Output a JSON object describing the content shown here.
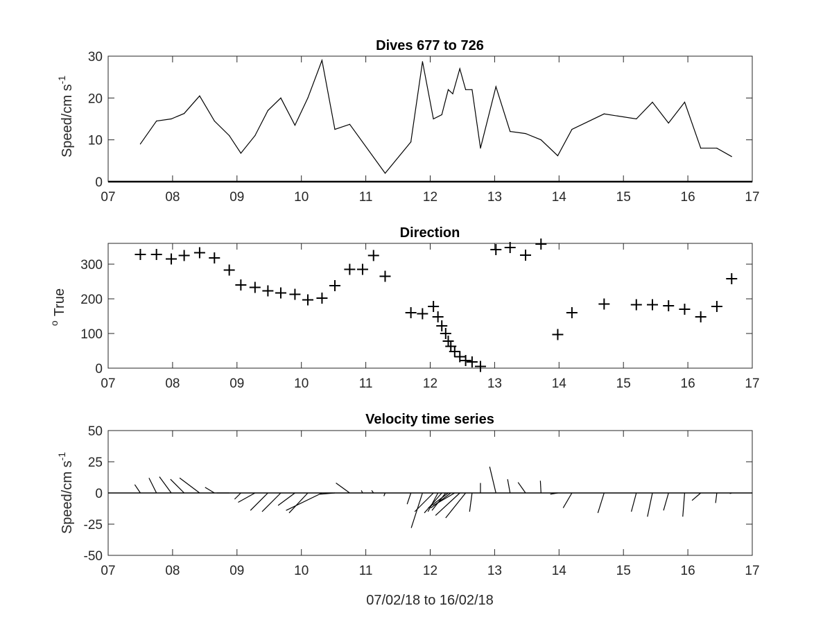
{
  "chart_data": [
    {
      "type": "line",
      "title": "Dives 677 to 726",
      "ylabel": "Speed/cm s",
      "ylabel_exponent": "-1",
      "xlim": [
        7,
        17
      ],
      "ylim": [
        0,
        30
      ],
      "xticks": [
        7,
        8,
        9,
        10,
        11,
        12,
        13,
        14,
        15,
        16,
        17
      ],
      "xtick_labels": [
        "07",
        "08",
        "09",
        "10",
        "11",
        "12",
        "13",
        "14",
        "15",
        "16",
        "17"
      ],
      "yticks": [
        0,
        10,
        20,
        30
      ],
      "ytick_labels": [
        "0",
        "10",
        "20",
        "30"
      ],
      "grid": false,
      "series": [
        {
          "x": [
            7.5,
            7.75,
            7.98,
            8.18,
            8.42,
            8.65,
            8.88,
            9.06,
            9.28,
            9.48,
            9.68,
            9.9,
            10.1,
            10.32,
            10.52,
            10.75,
            11.3,
            11.7,
            11.88,
            12.05,
            12.18,
            12.28,
            12.35,
            12.46,
            12.55,
            12.65,
            12.78,
            13.02,
            13.24,
            13.48,
            13.72,
            13.98,
            14.2,
            14.7,
            15.2,
            15.45,
            15.7,
            15.95,
            16.2,
            16.45,
            16.68
          ],
          "y": [
            9,
            14.5,
            15,
            16.3,
            20.5,
            14.5,
            11,
            6.8,
            11,
            17,
            20,
            13.5,
            20,
            29,
            12.5,
            13.7,
            2,
            9.5,
            28.7,
            15,
            16,
            22,
            21,
            27,
            22,
            22,
            8,
            22.7,
            12,
            11.5,
            10,
            6.2,
            12.5,
            16.2,
            15,
            19,
            14,
            19,
            8,
            8,
            6
          ]
        }
      ]
    },
    {
      "type": "scatter",
      "title": "Direction",
      "ylabel": "True",
      "ylabel_prefix": "o",
      "xlim": [
        7,
        17
      ],
      "ylim": [
        0,
        360
      ],
      "xticks": [
        7,
        8,
        9,
        10,
        11,
        12,
        13,
        14,
        15,
        16,
        17
      ],
      "xtick_labels": [
        "07",
        "08",
        "09",
        "10",
        "11",
        "12",
        "13",
        "14",
        "15",
        "16",
        "17"
      ],
      "yticks": [
        0,
        100,
        200,
        300
      ],
      "ytick_labels": [
        "0",
        "100",
        "200",
        "300"
      ],
      "grid": false,
      "marker": "+",
      "series": [
        {
          "x": [
            7.5,
            7.75,
            7.98,
            8.18,
            8.42,
            8.65,
            8.88,
            9.06,
            9.28,
            9.48,
            9.68,
            9.9,
            10.1,
            10.32,
            10.52,
            10.75,
            10.95,
            11.12,
            11.3,
            11.7,
            11.88,
            12.05,
            12.12,
            12.18,
            12.24,
            12.28,
            12.32,
            12.38,
            12.46,
            12.55,
            12.65,
            12.78,
            13.02,
            13.24,
            13.48,
            13.72,
            13.98,
            14.2,
            14.7,
            15.2,
            15.45,
            15.7,
            15.95,
            16.2,
            16.45,
            16.68
          ],
          "y": [
            328,
            328,
            315,
            325,
            333,
            318,
            283,
            240,
            233,
            223,
            217,
            213,
            197,
            202,
            238,
            285,
            285,
            325,
            265,
            160,
            157,
            178,
            148,
            122,
            100,
            78,
            63,
            48,
            33,
            22,
            18,
            5,
            342,
            348,
            326,
            358,
            97,
            160,
            185,
            183,
            183,
            180,
            170,
            148,
            178,
            258
          ]
        }
      ]
    },
    {
      "type": "quiver",
      "title": "Velocity time series",
      "ylabel": "Speed/cm s",
      "ylabel_exponent": "-1",
      "xlabel": "07/02/18 to 16/02/18",
      "xlim": [
        7,
        17
      ],
      "ylim": [
        -50,
        50
      ],
      "xticks": [
        7,
        8,
        9,
        10,
        11,
        12,
        13,
        14,
        15,
        16,
        17
      ],
      "xtick_labels": [
        "07",
        "08",
        "09",
        "10",
        "11",
        "12",
        "13",
        "14",
        "15",
        "16",
        "17"
      ],
      "yticks": [
        -50,
        -25,
        0,
        25,
        50
      ],
      "ytick_labels": [
        "-50",
        "-25",
        "0",
        "25",
        "50"
      ],
      "grid": false,
      "vectors": {
        "t": [
          7.5,
          7.75,
          7.98,
          8.18,
          8.42,
          8.65,
          8.88,
          9.06,
          9.28,
          9.48,
          9.68,
          9.9,
          10.1,
          10.32,
          10.52,
          10.75,
          10.95,
          11.12,
          11.3,
          11.7,
          11.88,
          12.05,
          12.12,
          12.18,
          12.24,
          12.28,
          12.32,
          12.38,
          12.46,
          12.55,
          12.65,
          12.78,
          13.02,
          13.24,
          13.48,
          13.72,
          13.98,
          14.2,
          14.7,
          15.2,
          15.45,
          15.7,
          15.95,
          16.2,
          16.45,
          16.68
        ],
        "u": [
          -4.5,
          -6,
          -9.5,
          -11,
          -16,
          -7.5,
          -10,
          -5,
          -13.5,
          -14,
          -15,
          -13.5,
          -15,
          -28.8,
          -12,
          -11,
          -1,
          -1.5,
          -1,
          -3,
          -9,
          -15,
          -8,
          -14,
          -11,
          -16,
          -16,
          -17,
          -19.5,
          -16,
          -2,
          0,
          -5,
          -2,
          -6,
          -0.5,
          -6,
          -7,
          -5,
          -4,
          -4,
          -4,
          -1.5,
          -7,
          -1,
          -1.5
        ],
        "v": [
          6.7,
          12,
          13,
          11,
          12,
          4.5,
          0,
          -5,
          -7.5,
          -14,
          -15,
          -10,
          -16,
          -14,
          -1,
          8,
          2,
          2,
          -2.5,
          -9,
          -28,
          -15,
          -15,
          -16,
          -14,
          -12,
          -12,
          -10,
          -18,
          -20,
          -15,
          8,
          21,
          11,
          8.5,
          9.8,
          -1,
          -12,
          -16,
          -15,
          -19,
          -14,
          -19,
          -6,
          -8,
          -0.5
        ]
      }
    }
  ]
}
